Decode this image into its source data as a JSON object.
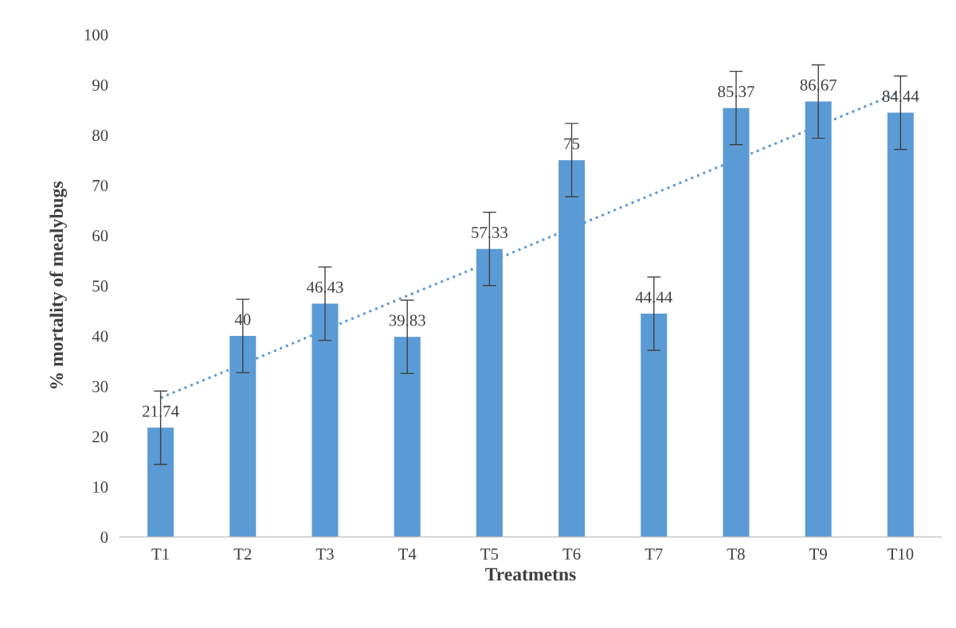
{
  "chart_data": {
    "type": "bar",
    "xlabel": "Treatmetns",
    "ylabel": "% mortality of mealybugs",
    "categories": [
      "T1",
      "T2",
      "T3",
      "T4",
      "T5",
      "T6",
      "T7",
      "T8",
      "T9",
      "T10"
    ],
    "series": [
      {
        "color": "#5b9bd5",
        "values": [
          21.74,
          40,
          46.43,
          39.83,
          57.33,
          75,
          44.44,
          85.37,
          86.67,
          84.44
        ],
        "errors": [
          7.3,
          7.3,
          7.3,
          7.3,
          7.3,
          7.3,
          7.3,
          7.3,
          7.3,
          7.3
        ],
        "data_labels": true
      },
      {
        "type": "line",
        "color": "#5b9bd5",
        "line_style": "dotted",
        "marker": "none",
        "values": [
          27.7,
          34.4,
          41.2,
          48.0,
          54.7,
          61.5,
          68.3,
          75.1,
          81.8,
          88.6
        ]
      }
    ],
    "ylim": [
      0,
      100
    ],
    "yticks": [
      0,
      10,
      20,
      30,
      40,
      50,
      60,
      70,
      80,
      90,
      100
    ],
    "grid": false,
    "legend": false
  }
}
